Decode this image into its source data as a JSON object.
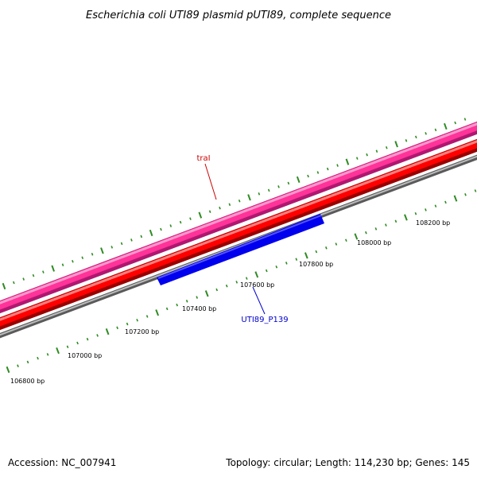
{
  "title": "Escherichia coli UTI89 plasmid pUTI89, complete sequence",
  "footer": {
    "accession": "Accession: NC_007941",
    "topology": "Topology: circular; Length: 114,230 bp; Genes: 145"
  },
  "colors": {
    "pink_track": "#ff3399",
    "red_track": "#ff0000",
    "gray_track": "#777777",
    "gene_blue": "#0000ff",
    "tick_green": "#2e8b22",
    "label_red": "#cc0000",
    "label_blue": "#0000cc"
  },
  "scale_labels": [
    {
      "bp": 106800,
      "text": "106800 bp"
    },
    {
      "bp": 107000,
      "text": "107000 bp"
    },
    {
      "bp": 107200,
      "text": "107200 bp"
    },
    {
      "bp": 107400,
      "text": "107400 bp"
    },
    {
      "bp": 107600,
      "text": "107600 bp"
    },
    {
      "bp": 107800,
      "text": "107800 bp"
    },
    {
      "bp": 108000,
      "text": "108000 bp"
    },
    {
      "bp": 108200,
      "text": "108200 bp"
    }
  ],
  "features": [
    {
      "name": "traI",
      "track": "pink",
      "label_color": "#cc0000"
    },
    {
      "name": "UTI89_P139",
      "track": "blue",
      "label_color": "#0000cc",
      "start_bp": 107350,
      "end_bp": 107930
    }
  ]
}
